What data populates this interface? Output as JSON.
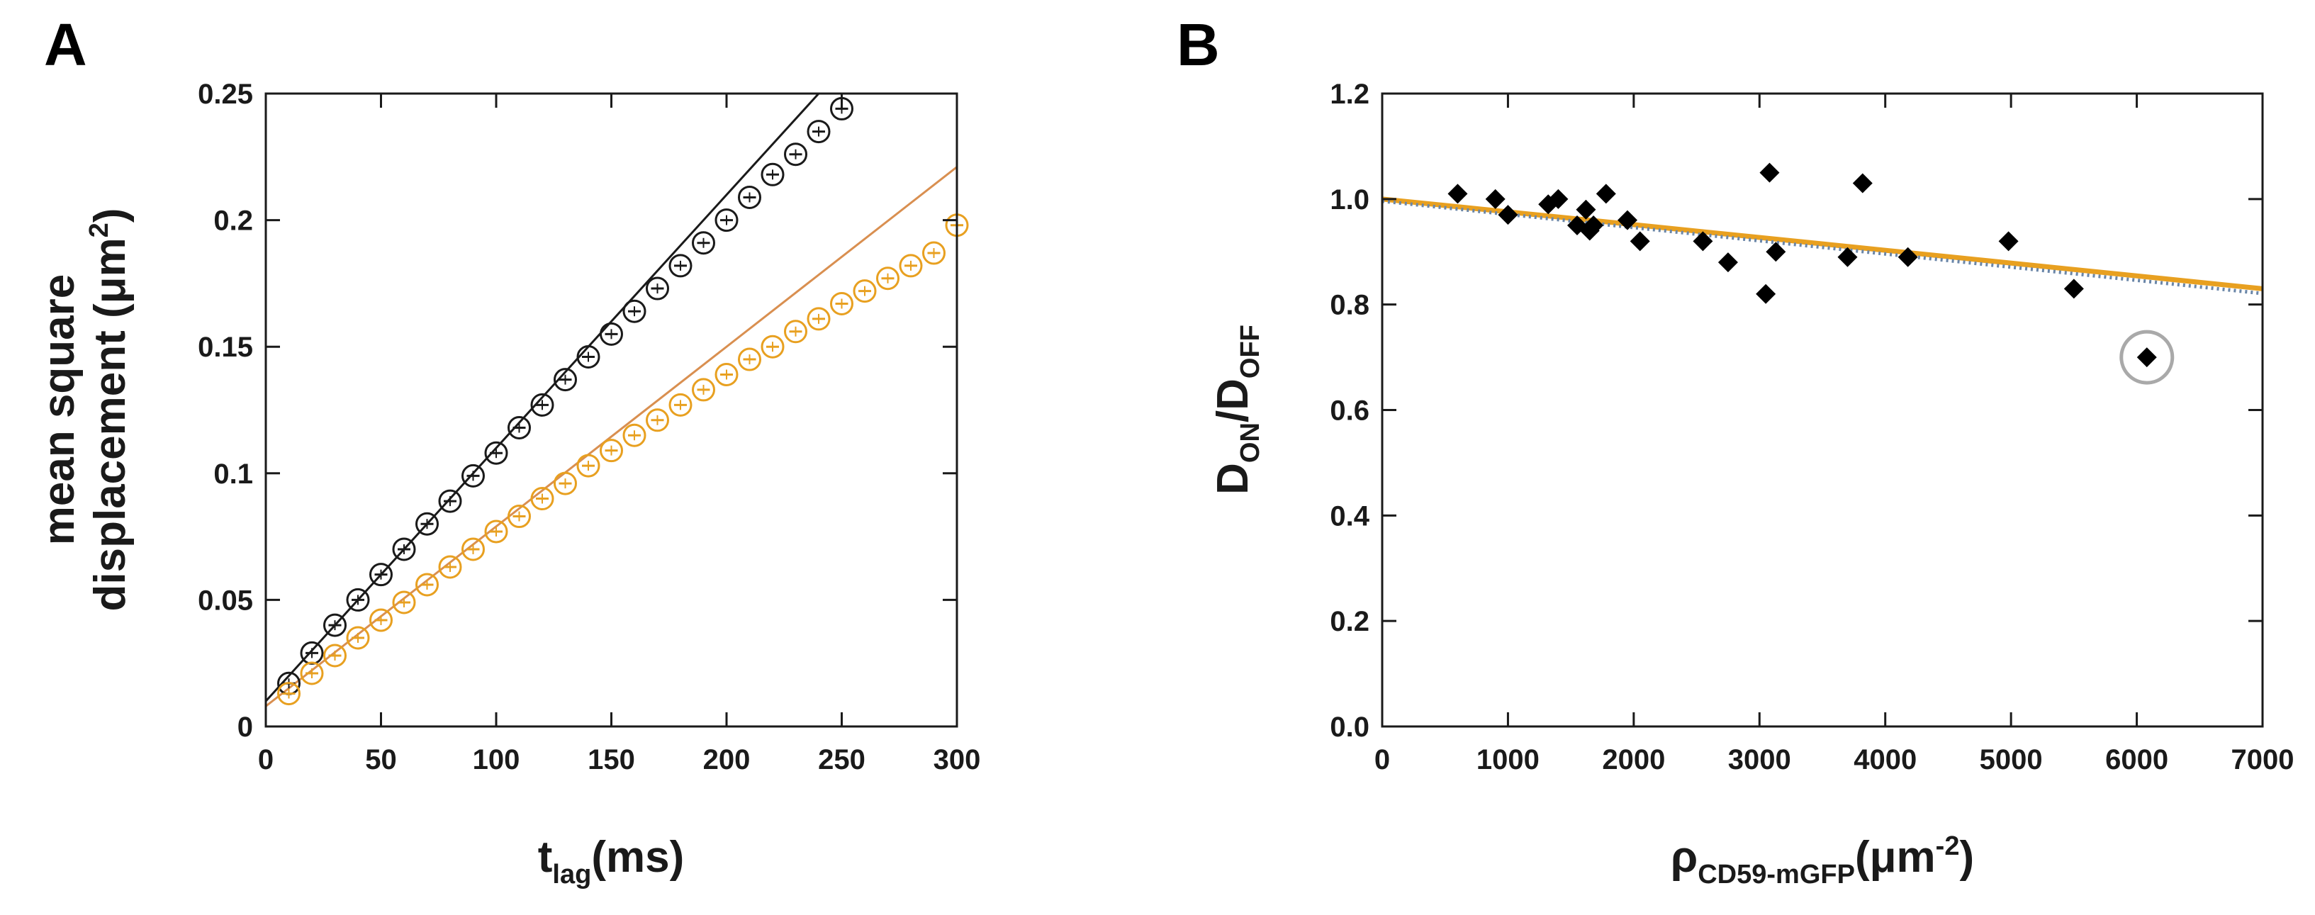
{
  "colors": {
    "black_series": "#1a1a1a",
    "orange_series": "#e8a020",
    "orange_fit": "#d98f50",
    "dotted_fit": "#6a86a8",
    "circle_highlight": "#a9a9a9"
  },
  "chart_data": [
    {
      "panel": "A",
      "type": "scatter",
      "xlabel_main": "t",
      "xlabel_sub": "lag",
      "xlabel_tail": "(ms)",
      "ylabel_line1": "mean square",
      "ylabel_line2_pre": "displacement (μm",
      "ylabel_line2_sup": "2",
      "ylabel_line2_post": ")",
      "xlim": [
        0,
        300
      ],
      "ylim": [
        0,
        0.25
      ],
      "xticks": [
        0,
        50,
        100,
        150,
        200,
        250,
        300
      ],
      "xtick_labels": [
        "0",
        "50",
        "100",
        "150",
        "200",
        "250",
        "300"
      ],
      "yticks": [
        0,
        0.05,
        0.1,
        0.15,
        0.2,
        0.25
      ],
      "ytick_labels": [
        "0",
        "0.05",
        "0.1",
        "0.15",
        "0.2",
        "0.25"
      ],
      "series": [
        {
          "name": "black",
          "color": "#1a1a1a",
          "x": [
            10,
            20,
            30,
            40,
            50,
            60,
            70,
            80,
            90,
            100,
            110,
            120,
            130,
            140,
            150,
            160,
            170,
            180,
            190,
            200,
            210,
            220,
            230,
            240,
            250
          ],
          "y": [
            0.017,
            0.029,
            0.04,
            0.05,
            0.06,
            0.07,
            0.08,
            0.089,
            0.099,
            0.108,
            0.118,
            0.127,
            0.137,
            0.146,
            0.155,
            0.164,
            0.173,
            0.182,
            0.191,
            0.2,
            0.209,
            0.218,
            0.226,
            0.235,
            0.244
          ],
          "fit": {
            "x": [
              0,
              240
            ],
            "y": [
              0.01,
              0.25
            ]
          }
        },
        {
          "name": "orange",
          "color": "#e8a020",
          "x": [
            10,
            20,
            30,
            40,
            50,
            60,
            70,
            80,
            90,
            100,
            110,
            120,
            130,
            140,
            150,
            160,
            170,
            180,
            190,
            200,
            210,
            220,
            230,
            240,
            250,
            260,
            270,
            280,
            290,
            300
          ],
          "y": [
            0.013,
            0.021,
            0.028,
            0.035,
            0.042,
            0.049,
            0.056,
            0.063,
            0.07,
            0.077,
            0.083,
            0.09,
            0.096,
            0.103,
            0.109,
            0.115,
            0.121,
            0.127,
            0.133,
            0.139,
            0.145,
            0.15,
            0.156,
            0.161,
            0.167,
            0.172,
            0.177,
            0.182,
            0.187,
            0.198
          ],
          "fit": {
            "x": [
              0,
              300
            ],
            "y": [
              0.008,
              0.221
            ]
          }
        }
      ]
    },
    {
      "panel": "B",
      "type": "scatter",
      "xlabel_main": "ρ",
      "xlabel_sub": "CD59-mGFP",
      "xlabel_tail_pre": "(μm",
      "xlabel_tail_sup": "-2",
      "xlabel_tail_post": ")",
      "ylabel_main1": "D",
      "ylabel_sub1": "ON",
      "ylabel_main2": "/D",
      "ylabel_sub2": "OFF",
      "xlim": [
        0,
        7000
      ],
      "ylim": [
        0,
        1.2
      ],
      "xticks": [
        0,
        1000,
        2000,
        3000,
        4000,
        5000,
        6000,
        7000
      ],
      "xtick_labels": [
        "0",
        "1000",
        "2000",
        "3000",
        "4000",
        "5000",
        "6000",
        "7000"
      ],
      "yticks": [
        0,
        0.2,
        0.4,
        0.6,
        0.8,
        1.0,
        1.2
      ],
      "ytick_labels": [
        "0.0",
        "0.2",
        "0.4",
        "0.6",
        "0.8",
        "1.0",
        "1.2"
      ],
      "points": {
        "x": [
          600,
          900,
          1000,
          1320,
          1400,
          1550,
          1620,
          1650,
          1680,
          1780,
          1950,
          2050,
          2550,
          2750,
          3050,
          3080,
          3130,
          3700,
          3820,
          4180,
          4980,
          5500,
          6080
        ],
        "y": [
          1.01,
          1.0,
          0.97,
          0.99,
          1.0,
          0.95,
          0.98,
          0.94,
          0.95,
          1.01,
          0.96,
          0.92,
          0.92,
          0.88,
          0.82,
          1.05,
          0.9,
          0.89,
          1.03,
          0.89,
          0.92,
          0.83,
          0.7
        ]
      },
      "highlighted_point": {
        "x": 6080,
        "y": 0.7
      },
      "fit_solid": {
        "color": "#e8a020",
        "x": [
          0,
          7000
        ],
        "y": [
          1.0,
          0.83
        ]
      },
      "fit_dotted": {
        "color": "#6a86a8",
        "x": [
          0,
          7000
        ],
        "y": [
          1.0,
          0.825
        ]
      }
    }
  ]
}
